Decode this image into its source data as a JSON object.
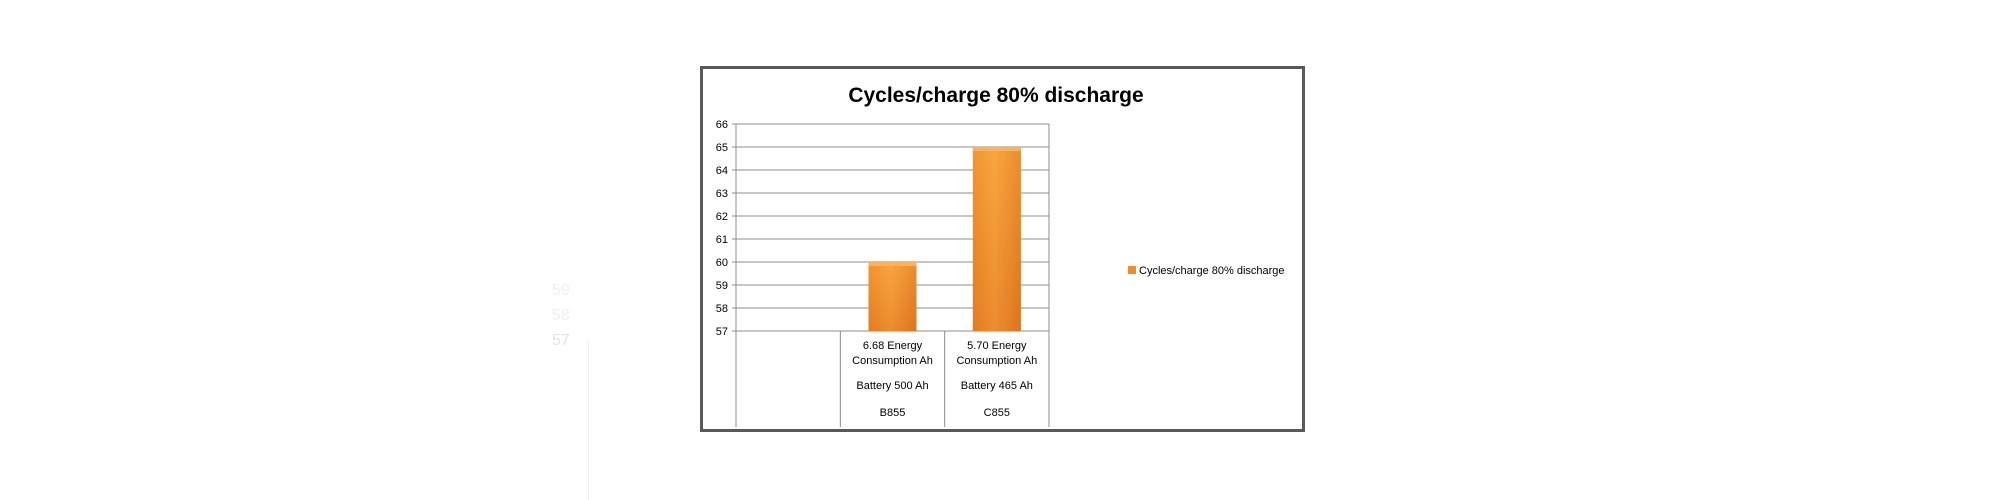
{
  "chart_data": {
    "type": "bar",
    "title": "Cycles/charge 80% discharge",
    "y_ticks": [
      "66",
      "65",
      "64",
      "63",
      "62",
      "61",
      "60",
      "59",
      "58",
      "57"
    ],
    "ylim": [
      57,
      66
    ],
    "grid": true,
    "legend_position": "right",
    "colors": {
      "bar": "#f28c28",
      "bar_top": "#f9b35e",
      "grid": "#8c8c8c"
    },
    "series": [
      {
        "name": "Cycles/charge 80% discharge",
        "values": [
          null,
          60,
          65
        ]
      }
    ],
    "categories": [
      {
        "top": "",
        "mid": "",
        "bottom": ""
      },
      {
        "top": "6.68 Energy Consumption Ah",
        "mid": "Battery 500 Ah",
        "bottom": "B855"
      },
      {
        "top": "5.70 Energy Consumption Ah",
        "mid": "Battery 465 Ah",
        "bottom": "C855"
      }
    ]
  }
}
